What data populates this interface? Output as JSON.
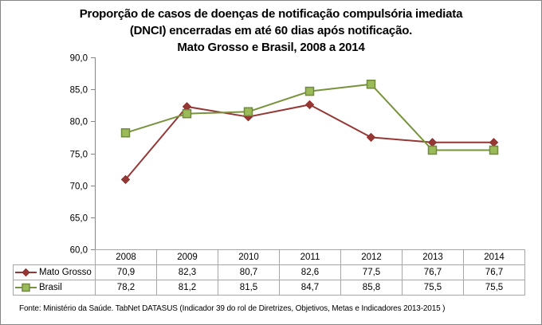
{
  "chart_data": {
    "type": "line",
    "title": [
      "Proporção de casos de doenças de notificação compulsória imediata",
      "(DNCI) encerradas em até 60 dias após notificação.",
      "Mato Grosso e Brasil, 2008 a 2014"
    ],
    "categories": [
      "2008",
      "2009",
      "2010",
      "2011",
      "2012",
      "2013",
      "2014"
    ],
    "series": [
      {
        "name": "Mato Grosso",
        "values": [
          70.9,
          82.3,
          80.7,
          82.6,
          77.5,
          76.7,
          76.7
        ],
        "labels": [
          "70,9",
          "82,3",
          "80,7",
          "82,6",
          "77,5",
          "76,7",
          "76,7"
        ],
        "color": "#953735",
        "marker": "diamond"
      },
      {
        "name": "Brasil",
        "values": [
          78.2,
          81.2,
          81.5,
          84.7,
          85.8,
          75.5,
          75.5
        ],
        "labels": [
          "78,2",
          "81,2",
          "81,5",
          "84,7",
          "85,8",
          "75,5",
          "75,5"
        ],
        "color": "#77933c",
        "fill": "#9bbb59",
        "marker": "square"
      }
    ],
    "ylim": [
      60,
      90
    ],
    "yticks": [
      60,
      65,
      70,
      75,
      80,
      85,
      90
    ],
    "ytick_labels": [
      "60,0",
      "65,0",
      "70,0",
      "75,0",
      "80,0",
      "85,0",
      "90,0"
    ],
    "xlabel": "",
    "ylabel": "",
    "grid": false,
    "legend": "data-table",
    "source": "Fonte: Ministério da Saúde. TabNet DATASUS (Indicador 39 do rol de Diretrizes, Objetivos, Metas e Indicadores 2013-2015 )"
  }
}
